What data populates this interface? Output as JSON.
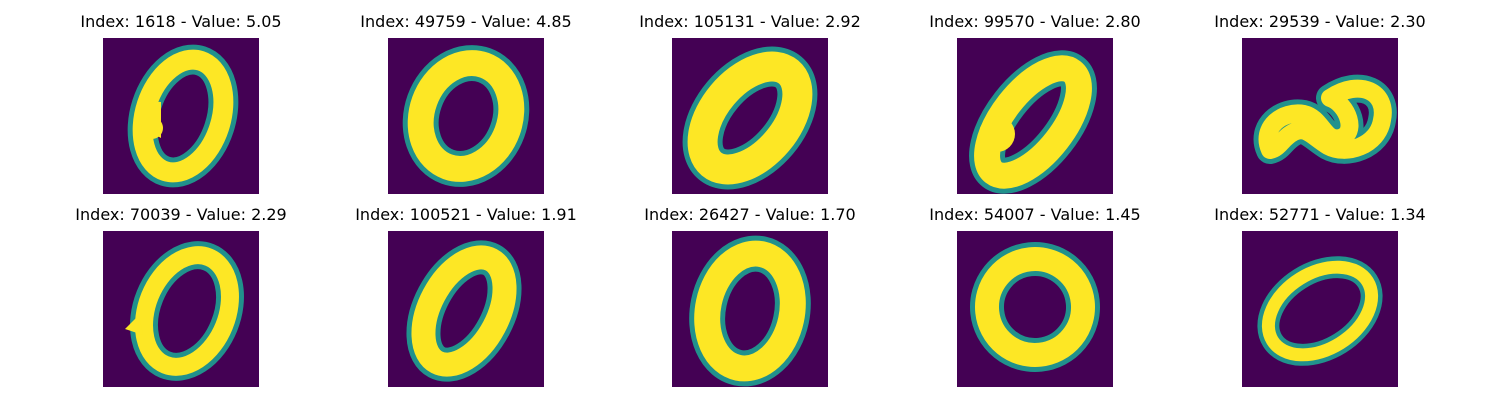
{
  "colormap": {
    "background": "#440154",
    "mid_dark": "#31688e",
    "mid": "#21918c",
    "mid_light": "#35b779",
    "foreground": "#fde725"
  },
  "panels": [
    {
      "title": "Index: 1618 - Value: 5.05"
    },
    {
      "title": "Index: 49759 - Value: 4.85"
    },
    {
      "title": "Index: 105131 - Value: 2.92"
    },
    {
      "title": "Index: 99570 - Value: 2.80"
    },
    {
      "title": "Index: 29539 - Value: 2.30"
    },
    {
      "title": "Index: 70039 - Value: 2.29"
    },
    {
      "title": "Index: 100521 - Value: 1.91"
    },
    {
      "title": "Index: 26427 - Value: 1.70"
    },
    {
      "title": "Index: 54007 - Value: 1.45"
    },
    {
      "title": "Index: 52771 - Value: 1.34"
    }
  ]
}
